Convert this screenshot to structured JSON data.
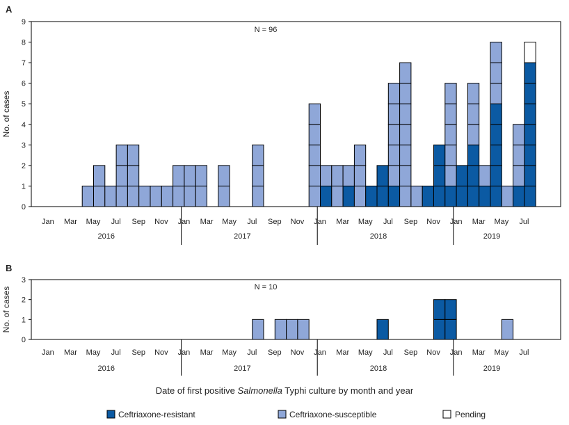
{
  "chart_data": [
    {
      "type": "bar",
      "panel_label": "A",
      "annotation": "N = 96",
      "ylabel": "No. of cases",
      "ylim": [
        0,
        9
      ],
      "yticks": [
        0,
        1,
        2,
        3,
        4,
        5,
        6,
        7,
        8,
        9
      ],
      "stacked": true,
      "month_tick_labels": [
        "Jan",
        "Mar",
        "May",
        "Jul",
        "Sep",
        "Nov"
      ],
      "years": [
        "2016",
        "2017",
        "2018",
        "2019"
      ],
      "months_per_year": [
        12,
        12,
        12,
        8
      ],
      "series": [
        {
          "name": "Ceftriaxone-resistant",
          "color": "#0b5aa3",
          "values": [
            0,
            0,
            0,
            0,
            0,
            0,
            0,
            0,
            0,
            0,
            0,
            0,
            0,
            0,
            0,
            0,
            0,
            0,
            0,
            0,
            0,
            0,
            0,
            0,
            0,
            1,
            0,
            1,
            0,
            1,
            2,
            1,
            0,
            0,
            1,
            3,
            1,
            2,
            3,
            1,
            5,
            0,
            1,
            7
          ]
        },
        {
          "name": "Ceftriaxone-susceptible",
          "color": "#8fa7d8",
          "values": [
            0,
            0,
            0,
            0,
            1,
            2,
            1,
            3,
            3,
            1,
            1,
            1,
            2,
            2,
            2,
            0,
            2,
            0,
            0,
            3,
            0,
            0,
            0,
            0,
            5,
            1,
            2,
            1,
            3,
            0,
            0,
            5,
            7,
            1,
            0,
            0,
            5,
            0,
            3,
            1,
            3,
            1,
            3,
            0
          ]
        },
        {
          "name": "Pending",
          "color": "#ffffff",
          "values": [
            0,
            0,
            0,
            0,
            0,
            0,
            0,
            0,
            0,
            0,
            0,
            0,
            0,
            0,
            0,
            0,
            0,
            0,
            0,
            0,
            0,
            0,
            0,
            0,
            0,
            0,
            0,
            0,
            0,
            0,
            0,
            0,
            0,
            0,
            0,
            0,
            0,
            0,
            0,
            0,
            0,
            0,
            0,
            1
          ]
        }
      ]
    },
    {
      "type": "bar",
      "panel_label": "B",
      "annotation": "N = 10",
      "ylabel": "No. of cases",
      "ylim": [
        0,
        3
      ],
      "yticks": [
        0,
        1,
        2,
        3
      ],
      "stacked": true,
      "month_tick_labels": [
        "Jan",
        "Mar",
        "May",
        "Jul",
        "Sep",
        "Nov"
      ],
      "years": [
        "2016",
        "2017",
        "2018",
        "2019"
      ],
      "months_per_year": [
        12,
        12,
        12,
        8
      ],
      "series": [
        {
          "name": "Ceftriaxone-resistant",
          "color": "#0b5aa3",
          "values": [
            0,
            0,
            0,
            0,
            0,
            0,
            0,
            0,
            0,
            0,
            0,
            0,
            0,
            0,
            0,
            0,
            0,
            0,
            0,
            0,
            0,
            0,
            0,
            0,
            0,
            0,
            0,
            0,
            0,
            0,
            1,
            0,
            0,
            0,
            0,
            2,
            2,
            0,
            0,
            0,
            0,
            0,
            0,
            0
          ]
        },
        {
          "name": "Ceftriaxone-susceptible",
          "color": "#8fa7d8",
          "values": [
            0,
            0,
            0,
            0,
            0,
            0,
            0,
            0,
            0,
            0,
            0,
            0,
            0,
            0,
            0,
            0,
            0,
            0,
            0,
            1,
            0,
            1,
            1,
            1,
            0,
            0,
            0,
            0,
            0,
            0,
            0,
            0,
            0,
            0,
            0,
            0,
            0,
            0,
            0,
            0,
            0,
            1,
            0,
            0
          ]
        },
        {
          "name": "Pending",
          "color": "#ffffff",
          "values": [
            0,
            0,
            0,
            0,
            0,
            0,
            0,
            0,
            0,
            0,
            0,
            0,
            0,
            0,
            0,
            0,
            0,
            0,
            0,
            0,
            0,
            0,
            0,
            0,
            0,
            0,
            0,
            0,
            0,
            0,
            0,
            0,
            0,
            0,
            0,
            0,
            0,
            0,
            0,
            0,
            0,
            0,
            0,
            0
          ]
        }
      ]
    }
  ],
  "xlabel": {
    "prefix": "Date of first positive ",
    "italic": "Salmonella",
    "suffix": " Typhi culture by month and year"
  },
  "legend": [
    {
      "label": "Ceftriaxone-resistant",
      "color": "#0b5aa3"
    },
    {
      "label": "Ceftriaxone-susceptible",
      "color": "#8fa7d8"
    },
    {
      "label": "Pending",
      "color": "#ffffff"
    }
  ]
}
